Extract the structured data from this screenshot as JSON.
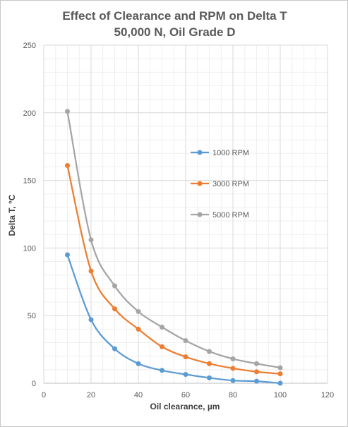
{
  "chart_data": {
    "type": "line",
    "title": "Effect of Clearance and RPM on Delta T",
    "subtitle": "50,000 N, Oil Grade D",
    "xlabel": "Oil clearance, µm",
    "ylabel": "Delta T, °C",
    "xlim": [
      0,
      120
    ],
    "ylim": [
      0,
      250
    ],
    "xticks": [
      0,
      20,
      40,
      60,
      80,
      100,
      120
    ],
    "yticks": [
      0,
      50,
      100,
      150,
      200,
      250
    ],
    "grid": true,
    "legend_position": "right",
    "x": [
      10,
      20,
      30,
      40,
      50,
      60,
      70,
      80,
      90,
      100
    ],
    "series": [
      {
        "name": "1000 RPM",
        "color": "#5b9bd5",
        "values": [
          95,
          47,
          25.5,
          14.5,
          9.5,
          6.5,
          4,
          2,
          1.5,
          0
        ]
      },
      {
        "name": "3000 RPM",
        "color": "#ed7d31",
        "values": [
          161,
          83,
          55,
          40,
          27,
          19.5,
          14.5,
          11,
          8.5,
          7
        ]
      },
      {
        "name": "5000 RPM",
        "color": "#a5a5a5",
        "values": [
          201,
          106,
          72,
          53,
          41.5,
          31.5,
          23.5,
          18,
          14.5,
          11.5
        ]
      }
    ]
  }
}
